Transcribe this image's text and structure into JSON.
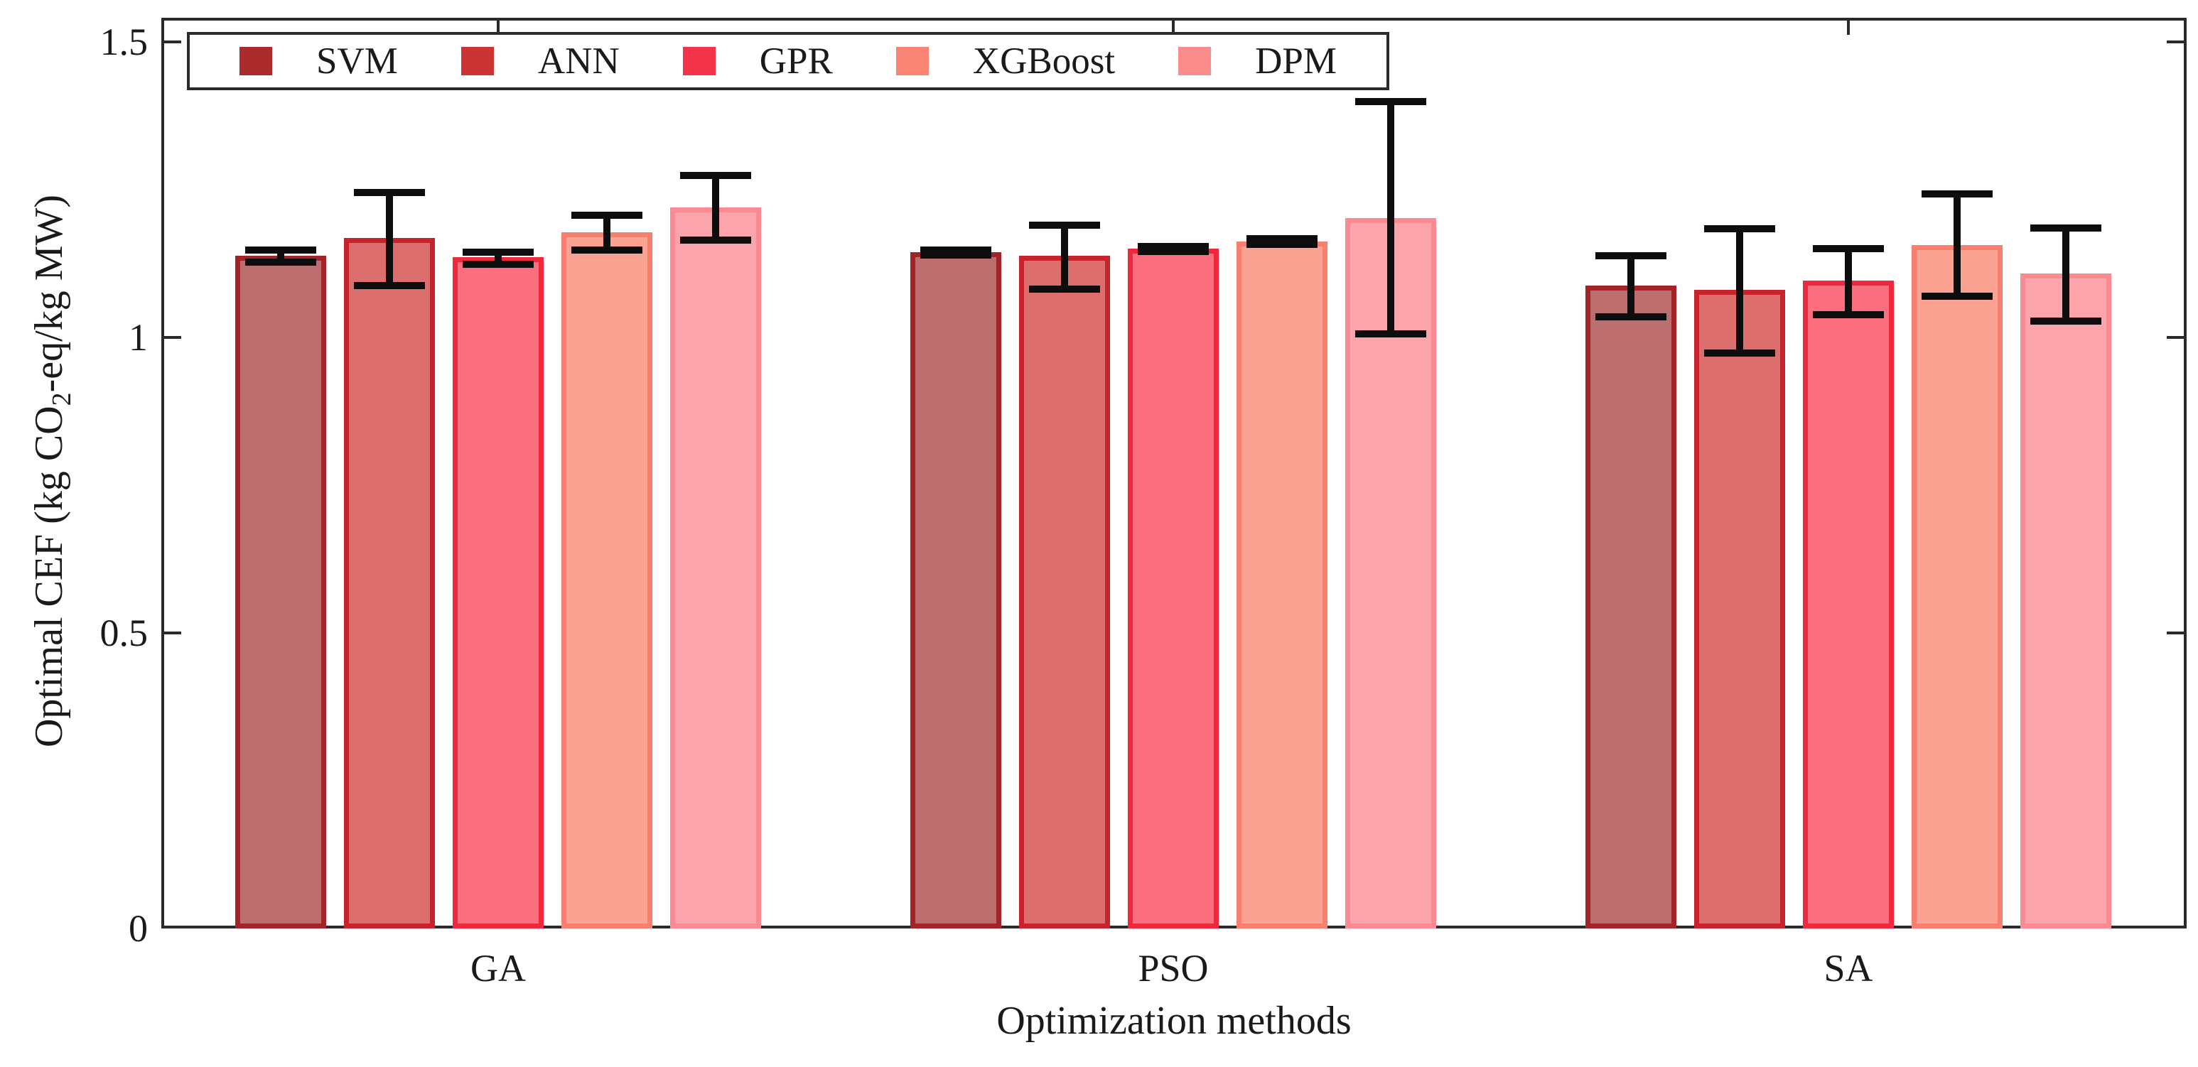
{
  "figure": {
    "xlabel": "Optimization methods",
    "ylabel_prefix": "Optimal CEF (kg CO",
    "ylabel_sub": "2",
    "ylabel_suffix": "-eq/kg MW)"
  },
  "chart_data": {
    "type": "bar",
    "title": "",
    "xlabel": "Optimization methods",
    "ylabel": "Optimal CEF (kg CO2-eq/kg MW)",
    "categories": [
      "GA",
      "PSO",
      "SA"
    ],
    "ylim": [
      0,
      1.54
    ],
    "yticks": [
      {
        "label": "0",
        "value": 0
      },
      {
        "label": "0.5",
        "value": 0.5
      },
      {
        "label": "1",
        "value": 1
      },
      {
        "label": "1.5",
        "value": 1.5
      }
    ],
    "grid": false,
    "legend_position": "top-left-inside",
    "error_bar_color": "#0d0d0d",
    "axis_color": "#2b2b2b",
    "series": [
      {
        "name": "SVM",
        "fill": "#BC6E6E",
        "edge": "#A22429",
        "swatch": "#AA2B2B",
        "values": [
          1.138,
          1.144,
          1.088
        ],
        "err_plus": [
          0.01,
          0.004,
          0.05
        ],
        "err_minus": [
          0.011,
          0.004,
          0.053
        ]
      },
      {
        "name": "ANN",
        "fill": "#DC6E6E",
        "edge": "#C8232C",
        "swatch": "#CC3333",
        "values": [
          1.168,
          1.138,
          1.081
        ],
        "err_plus": [
          0.077,
          0.052,
          0.103
        ],
        "err_minus": [
          0.08,
          0.056,
          0.107
        ]
      },
      {
        "name": "GPR",
        "fill": "#FB6F7E",
        "edge": "#F0283E",
        "swatch": "#F23349",
        "values": [
          1.136,
          1.15,
          1.096
        ],
        "err_plus": [
          0.008,
          0.004,
          0.054
        ],
        "err_minus": [
          0.012,
          0.004,
          0.058
        ]
      },
      {
        "name": "XGBoost",
        "fill": "#FBA392",
        "edge": "#F87F70",
        "swatch": "#F98473",
        "values": [
          1.178,
          1.162,
          1.156
        ],
        "err_plus": [
          0.029,
          0.005,
          0.087
        ],
        "err_minus": [
          0.03,
          0.005,
          0.086
        ]
      },
      {
        "name": "DPM",
        "fill": "#FCA4AB",
        "edge": "#FB8A93",
        "swatch": "#FB8C8C",
        "values": [
          1.22,
          1.202,
          1.108
        ],
        "err_plus": [
          0.054,
          0.197,
          0.077
        ],
        "err_minus": [
          0.055,
          0.196,
          0.08
        ]
      }
    ]
  }
}
